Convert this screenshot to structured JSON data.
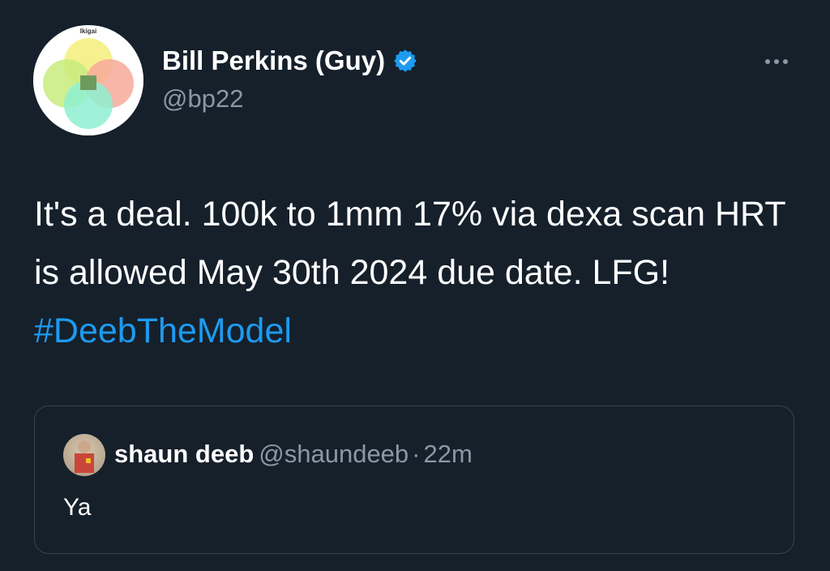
{
  "author": {
    "name": "Bill Perkins (Guy)",
    "handle": "@bp22",
    "verified": true,
    "avatar_icon": "ikigai-diagram-avatar",
    "avatar_caption": "Ikigai"
  },
  "tweet": {
    "text_plain": "It's a deal. 100k to 1mm 17% via dexa scan HRT is allowed May 30th 2024 due date. LFG! ",
    "hashtag": "#DeebTheModel"
  },
  "quoted": {
    "name": "shaun deeb",
    "handle": "@shaundeeb",
    "separator": "·",
    "time": "22m",
    "text": "Ya"
  },
  "colors": {
    "background": "#15202b",
    "accent": "#1d9bf0",
    "secondary_text": "#8b98a5",
    "border": "#38444d"
  }
}
